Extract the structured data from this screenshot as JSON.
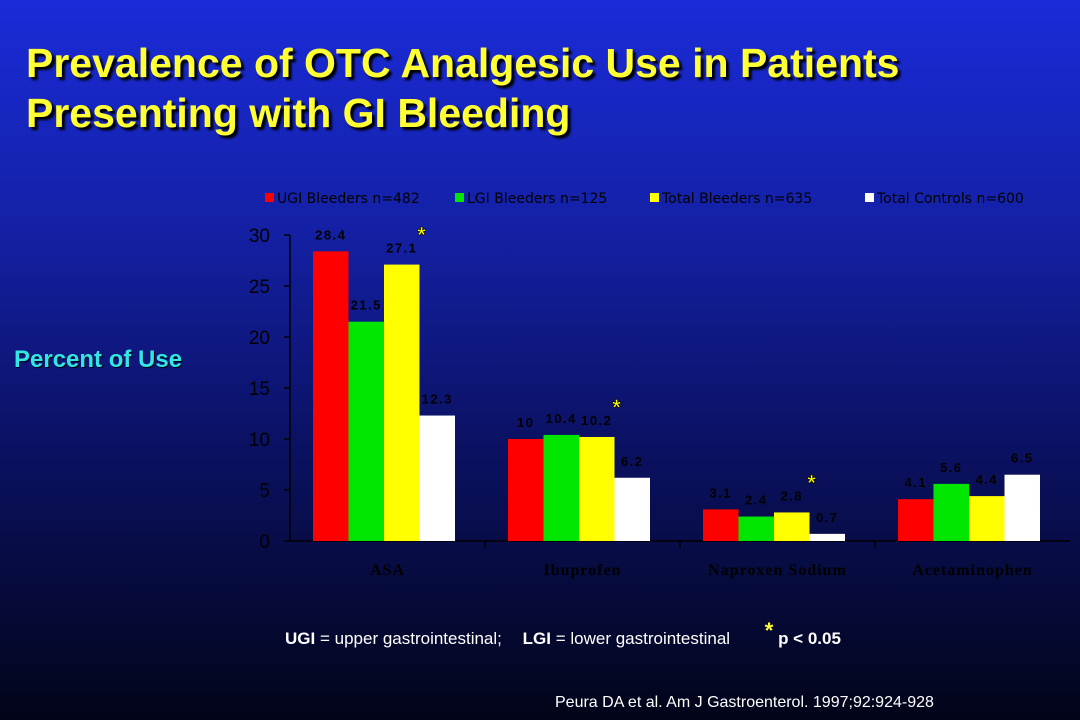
{
  "slide": {
    "title_line1": "Prevalence of OTC Analgesic Use in Patients",
    "title_line2": "Presenting with GI Bleeding",
    "ylabel": "Percent of Use",
    "footnote": {
      "ugi_abbr": "UGI",
      "ugi_text": "= upper gastrointestinal;",
      "lgi_abbr": "LGI",
      "lgi_text": "= lower gastrointestinal",
      "star": "*",
      "p_text": "p < 0.05"
    },
    "citation": "Peura DA et al. Am J Gastroenterol. 1997;92:924-928"
  },
  "chart_data": {
    "type": "bar",
    "categories": [
      "ASA",
      "Ibuprofen",
      "Naproxen Sodium",
      "Acetaminophen"
    ],
    "series": [
      {
        "name": "UGI Bleeders n=482",
        "color": "#ff0000",
        "values": [
          28.4,
          10,
          3.1,
          4.1
        ],
        "labels": [
          "28.4",
          "10",
          "3.1",
          "4.1"
        ]
      },
      {
        "name": "LGI Bleeders n=125",
        "color": "#00e600",
        "values": [
          21.5,
          10.4,
          2.4,
          5.6
        ],
        "labels": [
          "21.5",
          "10.4",
          "2.4",
          "5.6"
        ]
      },
      {
        "name": "Total Bleeders n=635",
        "color": "#ffff00",
        "values": [
          27.1,
          10.2,
          2.8,
          4.4
        ],
        "labels": [
          "27.1",
          "10.2",
          "2.8",
          "4.4"
        ]
      },
      {
        "name": "Total Controls n=600",
        "color": "#ffffff",
        "values": [
          12.3,
          6.2,
          0.7,
          6.5
        ],
        "labels": [
          "12.3",
          "6.2",
          "0.7",
          "6.5"
        ]
      }
    ],
    "significance_marker": "*",
    "significant_series": "Total Bleeders n=635",
    "significant_categories": [
      "ASA",
      "Ibuprofen",
      "Naproxen Sodium"
    ],
    "yticks": [
      "0",
      "5",
      "10",
      "15",
      "20",
      "25",
      "30"
    ],
    "ylim": [
      0,
      30
    ],
    "ylabel": "Percent of Use",
    "legend_position": "top",
    "grid": false
  }
}
